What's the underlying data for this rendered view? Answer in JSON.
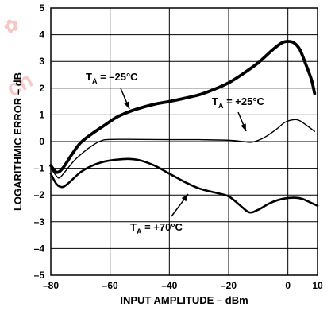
{
  "chart_data": {
    "type": "line",
    "title": "",
    "xlabel": "INPUT AMPLITUDE – dBm",
    "ylabel": "LOGARITHMIC ERROR – dB",
    "xlim": [
      -80,
      10
    ],
    "ylim": [
      -5,
      5
    ],
    "x_ticks": [
      -80,
      -60,
      -40,
      -20,
      0,
      10
    ],
    "x_tick_labels": [
      "–80",
      "–60",
      "–40",
      "–20",
      "0",
      "10"
    ],
    "y_ticks": [
      5,
      4,
      3,
      2,
      1,
      0,
      -1,
      -2,
      -3,
      -4,
      -5
    ],
    "y_tick_labels": [
      "5",
      "4",
      "3",
      "2",
      "1",
      "0",
      "–1",
      "–2",
      "–3",
      "–4",
      "–5"
    ],
    "grid": true,
    "legend": "none",
    "series": [
      {
        "label_main": "T",
        "label_sub": "A",
        "label_rest": " = –25°C",
        "style": "thick",
        "points": [
          [
            -80,
            -0.9
          ],
          [
            -78,
            -1.15
          ],
          [
            -76,
            -1.0
          ],
          [
            -73,
            -0.5
          ],
          [
            -70,
            -0.05
          ],
          [
            -66,
            0.3
          ],
          [
            -62,
            0.6
          ],
          [
            -58,
            0.9
          ],
          [
            -54,
            1.1
          ],
          [
            -50,
            1.25
          ],
          [
            -45,
            1.4
          ],
          [
            -40,
            1.5
          ],
          [
            -35,
            1.62
          ],
          [
            -30,
            1.75
          ],
          [
            -25,
            1.95
          ],
          [
            -20,
            2.2
          ],
          [
            -15,
            2.55
          ],
          [
            -10,
            2.95
          ],
          [
            -5,
            3.45
          ],
          [
            -2,
            3.7
          ],
          [
            0,
            3.75
          ],
          [
            2,
            3.7
          ],
          [
            4,
            3.45
          ],
          [
            6,
            2.9
          ],
          [
            8,
            2.3
          ],
          [
            9,
            1.8
          ]
        ]
      },
      {
        "label_main": "T",
        "label_sub": "A",
        "label_rest": " = +25°C",
        "style": "thin",
        "points": [
          [
            -80,
            -1.0
          ],
          [
            -78,
            -1.3
          ],
          [
            -77,
            -1.35
          ],
          [
            -75,
            -1.1
          ],
          [
            -72,
            -0.7
          ],
          [
            -69,
            -0.4
          ],
          [
            -66,
            -0.15
          ],
          [
            -63,
            0.03
          ],
          [
            -60,
            0.08
          ],
          [
            -50,
            0.08
          ],
          [
            -40,
            0.07
          ],
          [
            -30,
            0.07
          ],
          [
            -20,
            0.05
          ],
          [
            -15,
            0.0
          ],
          [
            -12,
            -0.02
          ],
          [
            -8,
            0.15
          ],
          [
            -4,
            0.45
          ],
          [
            -1,
            0.72
          ],
          [
            2,
            0.82
          ],
          [
            4,
            0.78
          ],
          [
            7,
            0.55
          ],
          [
            9,
            0.38
          ]
        ]
      },
      {
        "label_main": "T",
        "label_sub": "A",
        "label_rest": " = +70°C",
        "style": "medium",
        "points": [
          [
            -80,
            -1.2
          ],
          [
            -78,
            -1.6
          ],
          [
            -76,
            -1.7
          ],
          [
            -74,
            -1.55
          ],
          [
            -70,
            -1.15
          ],
          [
            -66,
            -0.9
          ],
          [
            -62,
            -0.75
          ],
          [
            -58,
            -0.68
          ],
          [
            -54,
            -0.65
          ],
          [
            -50,
            -0.7
          ],
          [
            -45,
            -0.9
          ],
          [
            -40,
            -1.2
          ],
          [
            -35,
            -1.5
          ],
          [
            -30,
            -1.75
          ],
          [
            -25,
            -1.9
          ],
          [
            -20,
            -2.05
          ],
          [
            -16,
            -2.4
          ],
          [
            -13,
            -2.65
          ],
          [
            -10,
            -2.55
          ],
          [
            -6,
            -2.3
          ],
          [
            -2,
            -2.15
          ],
          [
            2,
            -2.1
          ],
          [
            5,
            -2.15
          ],
          [
            8,
            -2.3
          ],
          [
            10,
            -2.4
          ]
        ]
      }
    ]
  }
}
